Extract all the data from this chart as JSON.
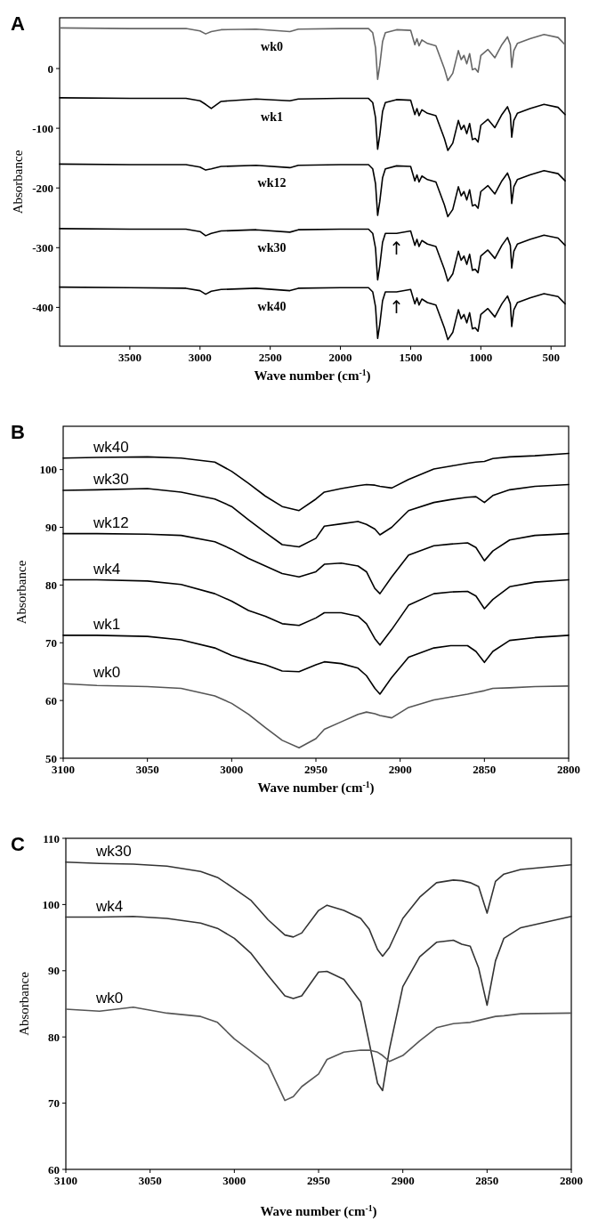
{
  "chart_data": [
    {
      "type": "line",
      "title": "A",
      "xlabel": "Wave number (cm$^{-1}$)",
      "ylabel": "Absorbance",
      "xlim": [
        4000,
        400
      ],
      "xticks": [
        3500,
        3000,
        2500,
        2000,
        1500,
        1000,
        500
      ],
      "ylim": [
        -465,
        85
      ],
      "yticks": [
        0,
        -100,
        -200,
        -300,
        -400
      ],
      "x": [
        4000,
        3500,
        3100,
        3000,
        2960,
        2920,
        2850,
        2600,
        2360,
        2300,
        2000,
        1800,
        1770,
        1750,
        1735,
        1720,
        1700,
        1680,
        1600,
        1500,
        1470,
        1455,
        1440,
        1420,
        1380,
        1320,
        1260,
        1235,
        1200,
        1160,
        1140,
        1120,
        1100,
        1080,
        1060,
        1040,
        1020,
        1000,
        950,
        900,
        850,
        810,
        790,
        780,
        765,
        740,
        650,
        550,
        450,
        400
      ],
      "series": [
        {
          "name": "wk0",
          "color": "#666666",
          "values": [
            68,
            67,
            67,
            63,
            58,
            62,
            65,
            66,
            62,
            66,
            67,
            67,
            60,
            35,
            -18,
            5,
            45,
            60,
            65,
            64,
            40,
            50,
            38,
            48,
            42,
            38,
            0,
            -20,
            -8,
            30,
            15,
            22,
            8,
            25,
            -2,
            0,
            -6,
            22,
            32,
            18,
            40,
            53,
            40,
            2,
            30,
            42,
            50,
            57,
            52,
            40
          ]
        },
        {
          "name": "wk1",
          "color": "#000000",
          "values": [
            -49,
            -50,
            -50,
            -54,
            -60,
            -67,
            -55,
            -51,
            -54,
            -51,
            -50,
            -50,
            -57,
            -82,
            -135,
            -112,
            -72,
            -57,
            -52,
            -53,
            -77,
            -67,
            -79,
            -69,
            -75,
            -79,
            -117,
            -137,
            -125,
            -87,
            -102,
            -95,
            -109,
            -92,
            -119,
            -117,
            -123,
            -95,
            -85,
            -99,
            -77,
            -64,
            -77,
            -115,
            -87,
            -75,
            -67,
            -60,
            -65,
            -77
          ]
        },
        {
          "name": "wk12",
          "color": "#000000",
          "values": [
            -160,
            -161,
            -161,
            -165,
            -170,
            -168,
            -164,
            -162,
            -166,
            -162,
            -161,
            -161,
            -168,
            -193,
            -246,
            -223,
            -183,
            -168,
            -163,
            -164,
            -188,
            -178,
            -190,
            -180,
            -186,
            -190,
            -228,
            -248,
            -236,
            -198,
            -213,
            -206,
            -220,
            -203,
            -230,
            -228,
            -234,
            -206,
            -196,
            -210,
            -188,
            -175,
            -188,
            -226,
            -198,
            -186,
            -178,
            -171,
            -176,
            -188
          ]
        },
        {
          "name": "wk30",
          "color": "#000000",
          "values": [
            -268,
            -269,
            -269,
            -273,
            -280,
            -276,
            -272,
            -270,
            -274,
            -270,
            -269,
            -269,
            -276,
            -301,
            -354,
            -331,
            -291,
            -276,
            -276,
            -272,
            -296,
            -286,
            -298,
            -288,
            -294,
            -298,
            -336,
            -356,
            -344,
            -306,
            -321,
            -314,
            -328,
            -311,
            -338,
            -336,
            -342,
            -314,
            -304,
            -318,
            -296,
            -283,
            -296,
            -334,
            -306,
            -294,
            -286,
            -279,
            -284,
            -296
          ]
        },
        {
          "name": "wk40",
          "color": "#000000",
          "values": [
            -366,
            -367,
            -368,
            -372,
            -378,
            -373,
            -370,
            -368,
            -372,
            -368,
            -367,
            -367,
            -374,
            -399,
            -452,
            -429,
            -389,
            -374,
            -374,
            -370,
            -394,
            -384,
            -396,
            -386,
            -392,
            -396,
            -434,
            -454,
            -442,
            -404,
            -419,
            -412,
            -426,
            -409,
            -436,
            -434,
            -440,
            -412,
            -402,
            -416,
            -394,
            -381,
            -394,
            -432,
            -404,
            -392,
            -384,
            -377,
            -382,
            -394
          ]
        }
      ],
      "annotations": [
        {
          "text": "↑",
          "x": 1600,
          "y": -276
        },
        {
          "text": "↑",
          "x": 1600,
          "y": -374
        }
      ]
    },
    {
      "type": "line",
      "title": "B",
      "xlabel": "Wave number (cm$^{-1}$)",
      "ylabel": "Absorbance",
      "xlim": [
        3100,
        2800
      ],
      "xticks": [
        3100,
        3050,
        3000,
        2950,
        2900,
        2850,
        2800
      ],
      "ylim": [
        50,
        107.5
      ],
      "yticks": [
        50,
        60,
        70,
        80,
        90,
        100
      ],
      "x": [
        3100,
        3080,
        3050,
        3030,
        3010,
        3000,
        2990,
        2980,
        2970,
        2960,
        2950,
        2945,
        2935,
        2925,
        2920,
        2915,
        2912,
        2905,
        2895,
        2880,
        2870,
        2860,
        2855,
        2850,
        2845,
        2835,
        2820,
        2800
      ],
      "series": [
        {
          "name": "wk40",
          "color": "#000000",
          "values": [
            102.0,
            102.1,
            102.2,
            102.0,
            101.3,
            99.7,
            97.6,
            95.4,
            93.6,
            92.9,
            94.9,
            96.1,
            96.7,
            97.2,
            97.4,
            97.3,
            97.1,
            96.8,
            98.3,
            100.1,
            100.6,
            101.1,
            101.3,
            101.4,
            101.9,
            102.2,
            102.4,
            102.8
          ]
        },
        {
          "name": "wk30",
          "color": "#000000",
          "values": [
            96.4,
            96.5,
            96.7,
            96.1,
            94.9,
            93.6,
            91.3,
            89.1,
            87.0,
            86.6,
            88.1,
            90.2,
            90.6,
            91.0,
            90.5,
            89.7,
            88.7,
            90.0,
            92.9,
            94.3,
            94.8,
            95.2,
            95.3,
            94.3,
            95.5,
            96.5,
            97.1,
            97.4
          ]
        },
        {
          "name": "wk12",
          "color": "#000000",
          "values": [
            88.9,
            88.9,
            88.8,
            88.6,
            87.5,
            86.2,
            84.6,
            83.3,
            82.0,
            81.4,
            82.3,
            83.6,
            83.8,
            83.3,
            82.3,
            79.4,
            78.5,
            81.4,
            85.2,
            86.8,
            87.1,
            87.3,
            86.5,
            84.2,
            85.9,
            87.8,
            88.6,
            88.9
          ]
        },
        {
          "name": "wk4",
          "color": "#000000",
          "values": [
            80.9,
            80.9,
            80.7,
            80.1,
            78.5,
            77.2,
            75.6,
            74.6,
            73.3,
            73.0,
            74.3,
            75.2,
            75.2,
            74.6,
            73.3,
            70.7,
            69.6,
            72.3,
            76.5,
            78.5,
            78.8,
            78.9,
            78.1,
            75.9,
            77.5,
            79.7,
            80.5,
            80.9
          ]
        },
        {
          "name": "wk1",
          "color": "#000000",
          "values": [
            71.3,
            71.3,
            71.1,
            70.5,
            69.1,
            67.8,
            66.9,
            66.2,
            65.1,
            65.0,
            66.2,
            66.7,
            66.4,
            65.6,
            64.3,
            62.1,
            61.1,
            64.0,
            67.5,
            69.1,
            69.5,
            69.5,
            68.5,
            66.6,
            68.5,
            70.4,
            70.9,
            71.3
          ]
        },
        {
          "name": "wk0",
          "color": "#555555",
          "values": [
            62.9,
            62.6,
            62.4,
            62.1,
            60.8,
            59.5,
            57.6,
            55.3,
            53.1,
            51.8,
            53.4,
            55.0,
            56.3,
            57.6,
            58.0,
            57.7,
            57.4,
            57.0,
            58.8,
            60.1,
            60.6,
            61.1,
            61.4,
            61.7,
            62.1,
            62.2,
            62.4,
            62.5
          ]
        }
      ]
    },
    {
      "type": "line",
      "title": "C",
      "xlabel": "Wave number (cm$^{-1}$)",
      "ylabel": "Absorbance",
      "xlim": [
        3100,
        2800
      ],
      "xticks": [
        3100,
        3050,
        3000,
        2950,
        2900,
        2850,
        2800
      ],
      "ylim": [
        60,
        110
      ],
      "yticks": [
        60,
        70,
        80,
        90,
        100,
        110
      ],
      "x": [
        3100,
        3080,
        3060,
        3040,
        3020,
        3010,
        3000,
        2990,
        2980,
        2970,
        2965,
        2960,
        2950,
        2945,
        2935,
        2925,
        2920,
        2915,
        2912,
        2908,
        2900,
        2890,
        2880,
        2870,
        2865,
        2860,
        2855,
        2850,
        2845,
        2840,
        2830,
        2800
      ],
      "series": [
        {
          "name": "wk30",
          "color": "#333333",
          "values": [
            106.4,
            106.2,
            106.1,
            105.8,
            105.0,
            104.1,
            102.4,
            100.6,
            97.7,
            95.4,
            95.1,
            95.7,
            99.1,
            99.9,
            99.1,
            97.9,
            96.3,
            93.2,
            92.2,
            93.5,
            97.9,
            101.1,
            103.3,
            103.7,
            103.6,
            103.3,
            102.7,
            98.7,
            103.5,
            104.6,
            105.3,
            106.0
          ]
        },
        {
          "name": "wk4",
          "color": "#333333",
          "values": [
            98.1,
            98.1,
            98.2,
            97.9,
            97.2,
            96.4,
            94.9,
            92.6,
            89.3,
            86.2,
            85.8,
            86.2,
            89.8,
            89.9,
            88.7,
            85.3,
            79.2,
            73.0,
            71.9,
            78.1,
            87.6,
            92.1,
            94.3,
            94.6,
            94.0,
            93.7,
            90.4,
            84.8,
            91.5,
            94.9,
            96.5,
            98.2
          ]
        },
        {
          "name": "wk0",
          "color": "#555555",
          "values": [
            84.2,
            83.9,
            84.5,
            83.6,
            83.1,
            82.2,
            79.7,
            77.8,
            75.8,
            70.4,
            71.0,
            72.5,
            74.4,
            76.6,
            77.7,
            78.0,
            78.0,
            77.7,
            77.2,
            76.3,
            77.2,
            79.4,
            81.4,
            82.0,
            82.1,
            82.2,
            82.5,
            82.8,
            83.1,
            83.2,
            83.5,
            83.6
          ]
        }
      ]
    }
  ]
}
